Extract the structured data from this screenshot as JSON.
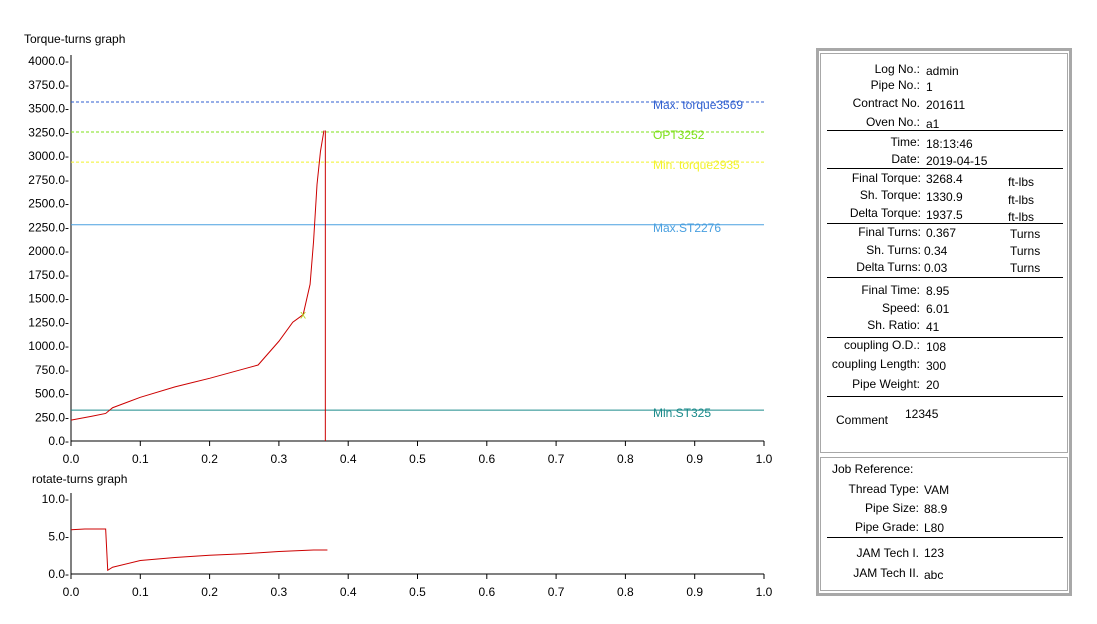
{
  "torque_graph": {
    "title": "Torque-turns graph",
    "y_ticks": [
      "4000.0-",
      "3750.0-",
      "3500.0-",
      "3250.0-",
      "3000.0-",
      "2750.0-",
      "2500.0-",
      "2250.0-",
      "2000.0-",
      "1750.0-",
      "1500.0-",
      "1250.0-",
      "1000.0-",
      "750.0-",
      "500.0-",
      "250.0-",
      "0.0-"
    ],
    "x_ticks": [
      "0.0",
      "0.1",
      "0.2",
      "0.3",
      "0.4",
      "0.5",
      "0.6",
      "0.7",
      "0.8",
      "0.9",
      "1.0"
    ],
    "ref_lines": [
      {
        "label": "Max. torque3569",
        "value": 3569,
        "color": "#2f5fd0"
      },
      {
        "label": "OPT3252",
        "value": 3252,
        "color": "#7fe01a"
      },
      {
        "label": "Min. torque2935",
        "value": 2935,
        "color": "#f2f22a"
      },
      {
        "label": "Max.ST2276",
        "value": 2276,
        "color": "#4aa0e0"
      },
      {
        "label": "Min.ST325",
        "value": 325,
        "color": "#1a8a8a"
      }
    ],
    "marker_label": "x"
  },
  "rotate_graph": {
    "title": "rotate-turns graph",
    "y_ticks": [
      "10.0-",
      "5.0-",
      "0.0-"
    ],
    "x_ticks": [
      "0.0",
      "0.1",
      "0.2",
      "0.3",
      "0.4",
      "0.5",
      "0.6",
      "0.7",
      "0.8",
      "0.9",
      "1.0"
    ]
  },
  "chart_data": [
    {
      "type": "line",
      "title": "Torque-turns graph",
      "xlim": [
        0,
        1.0
      ],
      "ylim": [
        0,
        4000
      ],
      "grid": false,
      "series": [
        {
          "color": "#cc0000",
          "x": [
            0.0,
            0.03,
            0.05,
            0.06,
            0.1,
            0.15,
            0.2,
            0.25,
            0.27,
            0.3,
            0.32,
            0.335,
            0.345,
            0.35,
            0.355,
            0.36,
            0.365
          ],
          "y": [
            220,
            260,
            290,
            350,
            460,
            570,
            660,
            760,
            800,
            1050,
            1250,
            1330,
            1650,
            2100,
            2700,
            3050,
            3268
          ]
        }
      ],
      "final_turns": 0.367,
      "shoulder_point": {
        "x": 0.335,
        "y": 1330.9
      }
    },
    {
      "type": "line",
      "title": "rotate-turns graph",
      "xlim": [
        0,
        1.0
      ],
      "ylim": [
        0,
        10.0
      ],
      "grid": false,
      "series": [
        {
          "color": "#cc0000",
          "x": [
            0.0,
            0.02,
            0.05,
            0.053,
            0.06,
            0.1,
            0.15,
            0.2,
            0.25,
            0.3,
            0.35,
            0.37
          ],
          "y": [
            5.9,
            6.0,
            6.0,
            0.5,
            0.9,
            1.8,
            2.2,
            2.5,
            2.7,
            3.0,
            3.2,
            3.2
          ]
        }
      ]
    }
  ],
  "info": {
    "group1": [
      {
        "label": "Log No.:",
        "value": "admin"
      },
      {
        "label": "Pipe No.:",
        "value": "1"
      },
      {
        "label": "Contract No.",
        "value": "201611"
      },
      {
        "label": "Oven No.:",
        "value": "a1"
      }
    ],
    "group2": [
      {
        "label": "Time:",
        "value": "18:13:46"
      },
      {
        "label": "Date:",
        "value": "2019-04-15"
      }
    ],
    "group3": [
      {
        "label": "Final Torque:",
        "value": "3268.4",
        "unit": "ft-lbs"
      },
      {
        "label": "Sh. Torque:",
        "value": "1330.9",
        "unit": "ft-lbs"
      },
      {
        "label": "Delta Torque:",
        "value": "1937.5",
        "unit": "ft-lbs"
      }
    ],
    "group4": [
      {
        "label": "Final Turns:",
        "value": "0.367",
        "unit": "Turns"
      },
      {
        "label": "Sh. Turns:",
        "value": "0.34",
        "unit": "Turns"
      },
      {
        "label": "Delta Turns:",
        "value": "0.03",
        "unit": "Turns"
      }
    ],
    "group5": [
      {
        "label": "Final Time:",
        "value": "8.95"
      },
      {
        "label": "Speed:",
        "value": "6.01"
      },
      {
        "label": "Sh. Ratio:",
        "value": "41"
      }
    ],
    "group6": [
      {
        "label": "coupling O.D.:",
        "value": "108"
      },
      {
        "label": "coupling Length:",
        "value": "300"
      },
      {
        "label": "Pipe Weight:",
        "value": "20"
      }
    ],
    "comment_label": "Comment",
    "comment_value": "12345"
  },
  "job": {
    "heading": "Job Reference:",
    "rows": [
      {
        "label": "Thread Type:",
        "value": "VAM"
      },
      {
        "label": "Pipe Size:",
        "value": "88.9"
      },
      {
        "label": "Pipe Grade:",
        "value": "L80"
      }
    ],
    "rows2": [
      {
        "label": "JAM Tech I.",
        "value": "123"
      },
      {
        "label": "JAM Tech II.",
        "value": "abc"
      }
    ]
  }
}
